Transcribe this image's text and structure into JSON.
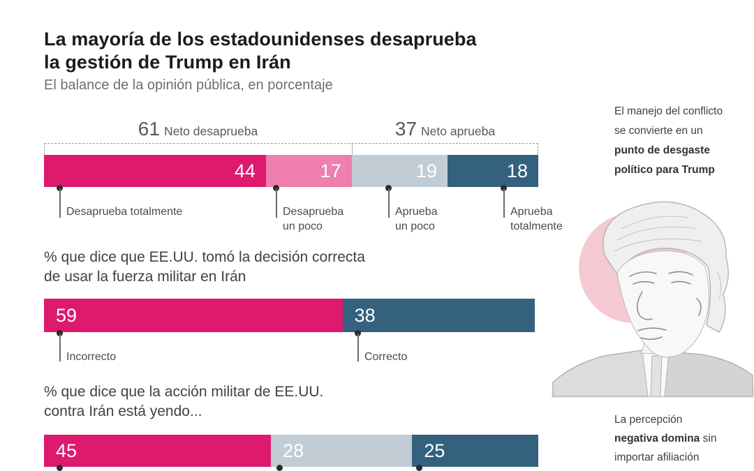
{
  "header": {
    "title_line1": "La mayoría de los estadounidenses desaprueba",
    "title_line2": "la gestión de Trump en Irán",
    "subtitle": "El balance de la opinión pública, en porcentaje"
  },
  "chart_data": [
    {
      "type": "bar",
      "stacked": true,
      "unit": "percent",
      "axis_range": [
        0,
        100
      ],
      "title": "",
      "net_annotations": [
        {
          "value": 61,
          "label": "Neto desaprueba"
        },
        {
          "value": 37,
          "label": "Neto aprueba"
        }
      ],
      "segments": [
        {
          "label": "Desaprueba totalmente",
          "value": 44,
          "color": "#dd1a6e"
        },
        {
          "label": "Desaprueba un poco",
          "value": 17,
          "color": "#ee7fae"
        },
        {
          "label": "Aprueba un poco",
          "value": 19,
          "color": "#c2ccd5"
        },
        {
          "label": "Aprueba totalmente",
          "value": 18,
          "color": "#34617e"
        }
      ]
    },
    {
      "type": "bar",
      "stacked": true,
      "unit": "percent",
      "axis_range": [
        0,
        100
      ],
      "title": "% que dice que EE.UU. tomó la decisión correcta\nde usar la fuerza militar en Irán",
      "segments": [
        {
          "label": "Incorrecto",
          "value": 59,
          "color": "#dd1a6e"
        },
        {
          "label": "Correcto",
          "value": 38,
          "color": "#34617e"
        }
      ]
    },
    {
      "type": "bar",
      "stacked": true,
      "unit": "percent",
      "axis_range": [
        0,
        100
      ],
      "title": "% que dice que la acción militar de EE.UU.\ncontra Irán está yendo...",
      "segments": [
        {
          "label": "",
          "value": 45,
          "color": "#dd1a6e"
        },
        {
          "label": "",
          "value": 28,
          "color": "#c2ccd5"
        },
        {
          "label": "",
          "value": 25,
          "color": "#34617e"
        }
      ]
    }
  ],
  "sidebar": {
    "note_top": {
      "regular": "El manejo del conflicto\nse convierte en un\n",
      "bold": "punto de desgaste\npolítico para Trump"
    },
    "portrait": {
      "icon": "trump-sketch-portrait",
      "accent_circle_color": "#f4c9d2"
    },
    "note_bottom": {
      "regular_start": "La percepción\n",
      "bold": "negativa domina",
      "regular_end": " sin\nimportar afiliación\npolítica, aunque con"
    }
  },
  "colors": {
    "strong_disapprove": "#dd1a6e",
    "soft_disapprove": "#ee7fae",
    "soft_approve": "#c2ccd5",
    "strong_approve": "#34617e",
    "bar_value_text": "#ffffff",
    "bracket_dash": "#9b9b9b"
  }
}
